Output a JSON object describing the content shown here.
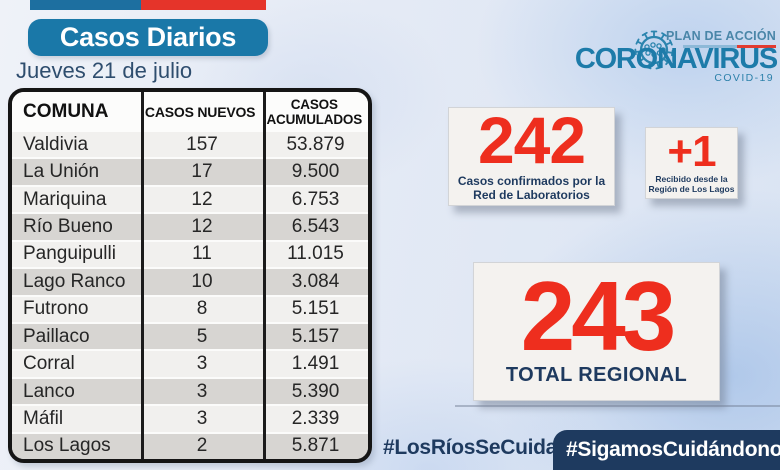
{
  "colors": {
    "accent_red": "#ee2e1e",
    "brand_blue": "#1d7ba9",
    "title_box_blue": "#1a78a8",
    "navy": "#1e3a5f",
    "flag_blue": "#1d6fa0",
    "flag_red": "#e5342a",
    "row_light": "#f1f0ee",
    "row_dark": "#d7d5d2"
  },
  "header": {
    "title": "Casos Diarios",
    "date": "Jueves 21 de julio"
  },
  "brand": {
    "plan": "PLAN DE ACCIÓN",
    "name": "CORONAVIRUS",
    "sub": "COVID-19",
    "icon": "virus-icon"
  },
  "table": {
    "columns": [
      "COMUNA",
      "CASOS NUEVOS",
      "CASOS ACUMULADOS"
    ],
    "rows": [
      {
        "comuna": "Valdivia",
        "nuevos": "157",
        "acumulados": "53.879"
      },
      {
        "comuna": "La Unión",
        "nuevos": "17",
        "acumulados": "9.500"
      },
      {
        "comuna": "Mariquina",
        "nuevos": "12",
        "acumulados": "6.753"
      },
      {
        "comuna": "Río Bueno",
        "nuevos": "12",
        "acumulados": "6.543"
      },
      {
        "comuna": "Panguipulli",
        "nuevos": "11",
        "acumulados": "11.015"
      },
      {
        "comuna": "Lago Ranco",
        "nuevos": "10",
        "acumulados": "3.084"
      },
      {
        "comuna": "Futrono",
        "nuevos": "8",
        "acumulados": "5.151"
      },
      {
        "comuna": "Paillaco",
        "nuevos": "5",
        "acumulados": "5.157"
      },
      {
        "comuna": "Corral",
        "nuevos": "3",
        "acumulados": "1.491"
      },
      {
        "comuna": "Lanco",
        "nuevos": "3",
        "acumulados": "5.390"
      },
      {
        "comuna": "Máfil",
        "nuevos": "3",
        "acumulados": "2.339"
      },
      {
        "comuna": "Los Lagos",
        "nuevos": "2",
        "acumulados": "5.871"
      }
    ]
  },
  "stats": {
    "confirmed": {
      "value": "242",
      "label": "Casos confirmados por la\nRed de Laboratorios"
    },
    "imported": {
      "value": "+1",
      "label": "Recibido desde la\nRegión de Los Lagos"
    },
    "total": {
      "value": "243",
      "label": "TOTAL REGIONAL"
    }
  },
  "footer": {
    "hashtag_left": "#LosRíosSeCuida",
    "hashtag_ribbon": "#SigamosCuidándonos"
  },
  "chart_data": {
    "type": "table",
    "title": "Casos Diarios — Jueves 21 de julio",
    "columns": [
      "COMUNA",
      "CASOS NUEVOS",
      "CASOS ACUMULADOS"
    ],
    "rows": [
      [
        "Valdivia",
        157,
        53879
      ],
      [
        "La Unión",
        17,
        9500
      ],
      [
        "Mariquina",
        12,
        6753
      ],
      [
        "Río Bueno",
        12,
        6543
      ],
      [
        "Panguipulli",
        11,
        11015
      ],
      [
        "Lago Ranco",
        10,
        3084
      ],
      [
        "Futrono",
        8,
        5151
      ],
      [
        "Paillaco",
        5,
        5157
      ],
      [
        "Corral",
        3,
        1491
      ],
      [
        "Lanco",
        3,
        5390
      ],
      [
        "Máfil",
        3,
        2339
      ],
      [
        "Los Lagos",
        2,
        5871
      ]
    ],
    "totals": {
      "casos_confirmados_red_laboratorios": 242,
      "recibido_region_los_lagos": 1,
      "total_regional": 243
    }
  }
}
